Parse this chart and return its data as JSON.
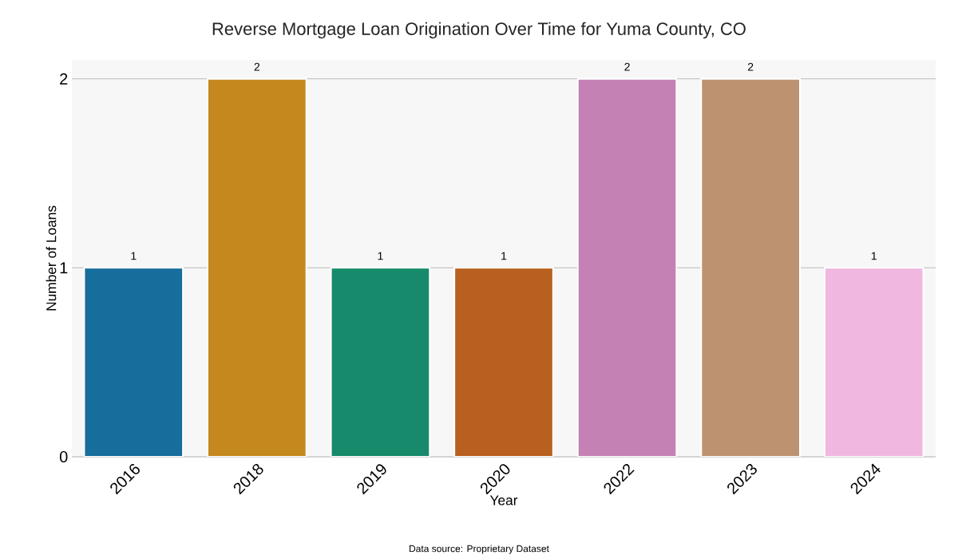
{
  "chart_data": {
    "type": "bar",
    "title": "Reverse Mortgage Loan Origination Over Time for Yuma County, CO",
    "categories": [
      "2016",
      "2018",
      "2019",
      "2020",
      "2022",
      "2023",
      "2024"
    ],
    "values": [
      1,
      2,
      1,
      1,
      2,
      2,
      1
    ],
    "colors": [
      "#176d9c",
      "#c4881f",
      "#168a6a",
      "#b8601f",
      "#c482b4",
      "#bc9270",
      "#f0b8e0"
    ],
    "xlabel": "Year",
    "ylabel": "Number of Loans",
    "ylim": [
      0,
      2.1
    ],
    "yticks": [
      0,
      1,
      2
    ],
    "grid": "y",
    "data_labels": true,
    "annotations": [
      "Data source: Proprietary Dataset"
    ]
  }
}
